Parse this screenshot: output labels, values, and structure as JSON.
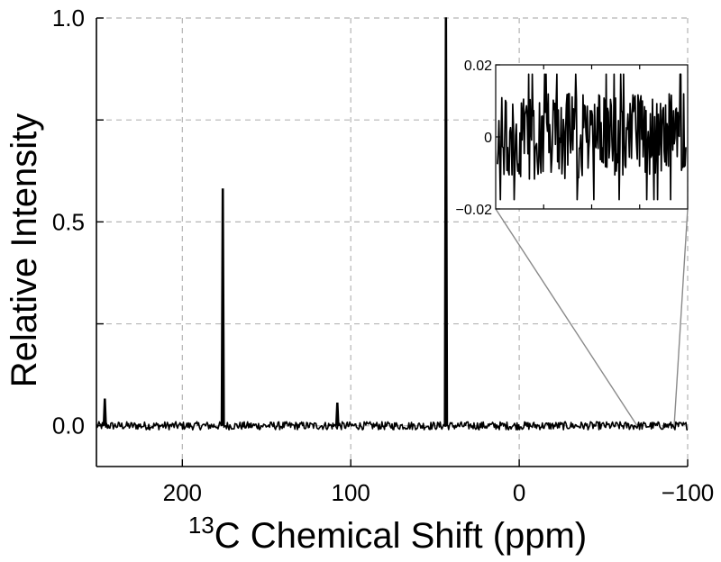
{
  "chart_data": {
    "type": "line",
    "main": {
      "xlabel_sup": "13",
      "xlabel": "C Chemical Shift (ppm)",
      "ylabel": "Relative Intensity",
      "xlim": [
        251,
        -100
      ],
      "ylim": [
        -0.1,
        1.0
      ],
      "x_reversed": true,
      "grid": true,
      "x_ticks": [
        200,
        100,
        0,
        -100
      ],
      "x_tick_labels": [
        "200",
        "100",
        "0",
        "−100"
      ],
      "y_ticks": [
        0.0,
        0.5,
        1.0
      ],
      "y_tick_labels": [
        "0.0",
        "0.5",
        "1.0"
      ],
      "peaks": [
        {
          "x": 246,
          "y": 0.065
        },
        {
          "x": 176,
          "y": 0.58
        },
        {
          "x": 108,
          "y": 0.055
        },
        {
          "x": 43.5,
          "y": 1.0
        }
      ],
      "noise_level": 0.01
    },
    "inset": {
      "xlim": [
        -70,
        -100
      ],
      "ylim": [
        -0.02,
        0.02
      ],
      "y_ticks": [
        -0.02,
        0,
        0.02
      ],
      "y_tick_labels": [
        "−0.02",
        "0",
        "0.02"
      ],
      "noise_level": 0.012,
      "series_description": "baseline noise"
    }
  }
}
